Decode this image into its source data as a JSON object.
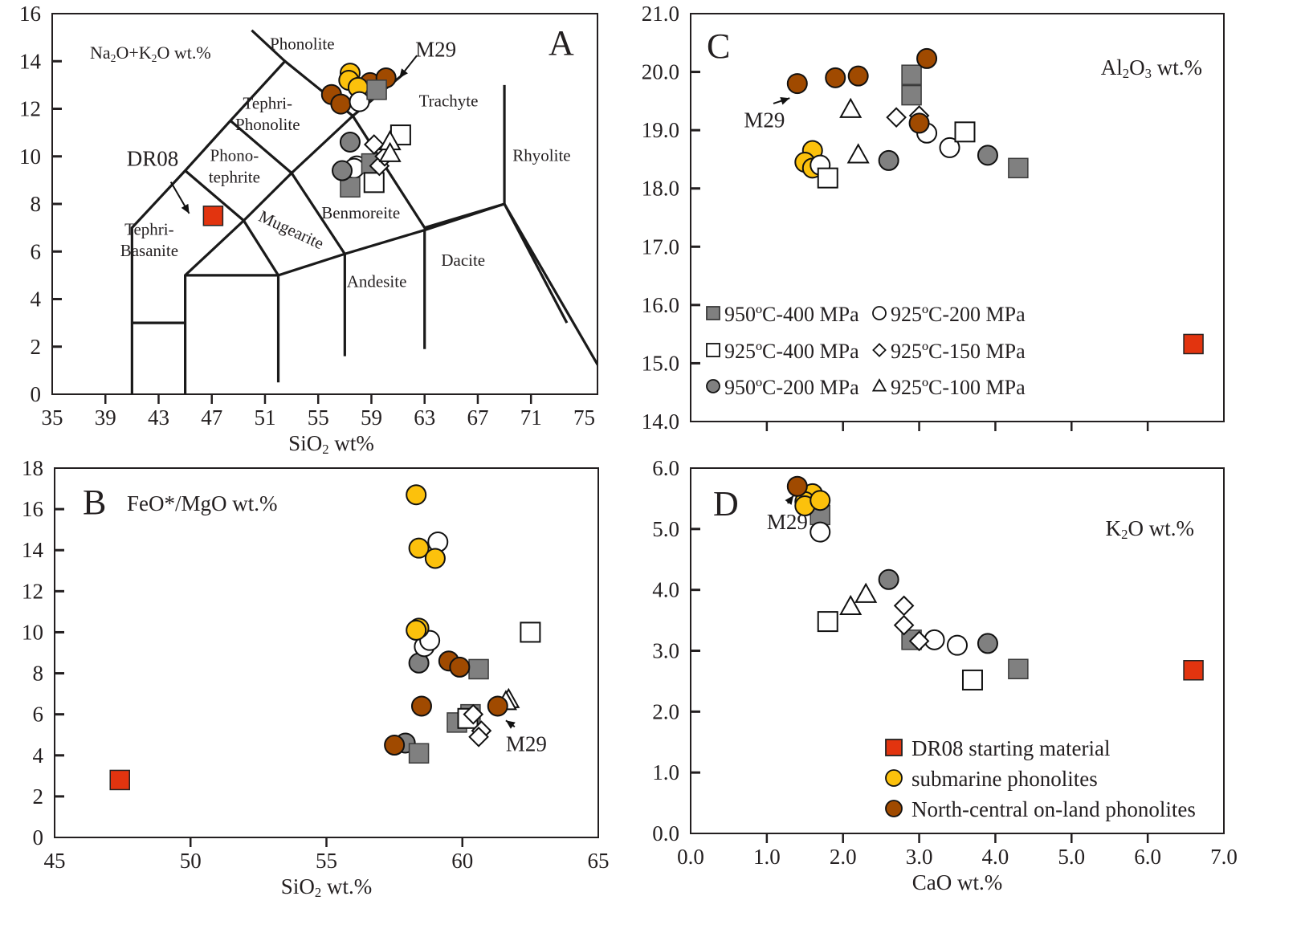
{
  "figure": {
    "colors": {
      "gray_fill": "#808080",
      "white_fill": "#ffffff",
      "dr08_red": "#e2340f",
      "submarine_yellow": "#fcc10c",
      "onland_brown": "#a04a00",
      "onland_brown_a": "#c85b0a",
      "axis": "#231f20"
    },
    "series_legend": [
      {
        "key": "g400",
        "label": "950ºC-400 MPa",
        "marker": "square",
        "fill": "gray"
      },
      {
        "key": "w200",
        "label": "925ºC-200 MPa",
        "marker": "circle",
        "fill": "white"
      },
      {
        "key": "w400",
        "label": "925ºC-400 MPa",
        "marker": "square",
        "fill": "white"
      },
      {
        "key": "d150",
        "label": "925ºC-150 MPa",
        "marker": "diamond",
        "fill": "white"
      },
      {
        "key": "g200",
        "label": "950ºC-200 MPa",
        "marker": "circle",
        "fill": "gray"
      },
      {
        "key": "t100",
        "label": "925ºC-100 MPa",
        "marker": "triangle",
        "fill": "white"
      }
    ],
    "sample_legend": [
      {
        "key": "dr08",
        "label": "DR08 starting material",
        "marker": "square",
        "fill": "red"
      },
      {
        "key": "sub",
        "label": "submarine phonolites",
        "marker": "circle",
        "fill": "yellow"
      },
      {
        "key": "onland",
        "label": "North-central on-land phonolites",
        "marker": "circle",
        "fill": "brown"
      }
    ]
  },
  "chart_data": [
    {
      "id": "A",
      "type": "scatter",
      "panel_letter": "A",
      "title": "",
      "ylabel_inside": "Na2O+K2O wt.%",
      "xlabel": "SiO2 wt%",
      "xlim": [
        35,
        76
      ],
      "ylim": [
        0,
        16
      ],
      "xticks": [
        35,
        39,
        43,
        47,
        51,
        55,
        59,
        63,
        67,
        71,
        75
      ],
      "yticks": [
        0,
        2,
        4,
        6,
        8,
        10,
        12,
        14,
        16
      ],
      "grid": false,
      "field_labels": [
        {
          "text": "Phonolite",
          "x": 53.8,
          "y": 14.5
        },
        {
          "text": "Tephri-",
          "x": 51.2,
          "y": 12.0
        },
        {
          "text": "Phonolite",
          "x": 51.2,
          "y": 11.1
        },
        {
          "text": "Phono-",
          "x": 48.7,
          "y": 9.8
        },
        {
          "text": "tephrite",
          "x": 48.7,
          "y": 8.9
        },
        {
          "text": "Tephri-",
          "x": 42.3,
          "y": 6.7
        },
        {
          "text": "Basanite",
          "x": 42.3,
          "y": 5.8
        },
        {
          "text": "Mugearite",
          "x": 52.8,
          "y": 6.7,
          "rotate": 25
        },
        {
          "text": "Benmoreite",
          "x": 58.2,
          "y": 7.4
        },
        {
          "text": "Trachyte",
          "x": 64.8,
          "y": 12.1
        },
        {
          "text": "Rhyolite",
          "x": 71.8,
          "y": 9.8
        },
        {
          "text": "Dacite",
          "x": 65.9,
          "y": 5.4
        },
        {
          "text": "Andesite",
          "x": 59.4,
          "y": 4.5
        }
      ],
      "field_boundaries": [
        [
          [
            41,
            0
          ],
          [
            41,
            7
          ],
          [
            45,
            9.4
          ],
          [
            48.4,
            11.5
          ],
          [
            52.5,
            14
          ],
          [
            57.6,
            11.7
          ],
          [
            63,
            7
          ],
          [
            69,
            8
          ],
          [
            69,
            13
          ]
        ],
        [
          [
            41,
            3
          ],
          [
            45,
            3
          ]
        ],
        [
          [
            45,
            0
          ],
          [
            45,
            5
          ],
          [
            49.4,
            7.3
          ],
          [
            53,
            9.3
          ],
          [
            57.6,
            11.7
          ]
        ],
        [
          [
            45,
            5
          ],
          [
            52,
            5
          ],
          [
            57,
            5.9
          ],
          [
            63,
            6.9
          ],
          [
            69,
            8
          ],
          [
            77.3,
            0
          ]
        ],
        [
          [
            52,
            0.5
          ],
          [
            52,
            5
          ]
        ],
        [
          [
            57,
            1.6
          ],
          [
            57,
            5.9
          ]
        ],
        [
          [
            63,
            1.9
          ],
          [
            63,
            6.9
          ]
        ],
        [
          [
            45,
            9.4
          ],
          [
            49.4,
            7.3
          ],
          [
            52,
            5
          ]
        ],
        [
          [
            48.4,
            11.5
          ],
          [
            53,
            9.3
          ],
          [
            57,
            5.9
          ]
        ],
        [
          [
            52.5,
            14
          ],
          [
            50,
            15.3
          ]
        ],
        [
          [
            57.6,
            11.7
          ],
          [
            61.5,
            13.5
          ]
        ],
        [
          [
            69,
            8
          ],
          [
            73.7,
            3
          ]
        ]
      ],
      "annotations": [
        {
          "text": "DR08",
          "x": 40.6,
          "y": 9.6,
          "arrow_to": [
            45.3,
            7.6
          ]
        },
        {
          "text": "M29",
          "x": 62.3,
          "y": 14.2,
          "arrow_to": [
            61.1,
            13.3
          ]
        }
      ],
      "series": [
        {
          "key": "onland",
          "points": [
            [
              56.0,
              12.6
            ],
            [
              56.7,
              12.2
            ],
            [
              58.9,
              13.1
            ],
            [
              60.1,
              13.3
            ]
          ]
        },
        {
          "key": "sub",
          "points": [
            [
              57.4,
              13.5
            ],
            [
              57.3,
              13.2
            ],
            [
              58.0,
              12.9
            ]
          ]
        },
        {
          "key": "w200",
          "points": [
            [
              58.1,
              12.3
            ],
            [
              57.9,
              9.6
            ],
            [
              57.7,
              9.5
            ]
          ]
        },
        {
          "key": "g400",
          "points": [
            [
              59.4,
              12.8
            ],
            [
              57.4,
              8.7
            ],
            [
              59.0,
              9.7
            ]
          ]
        },
        {
          "key": "g200",
          "points": [
            [
              57.4,
              10.6
            ],
            [
              56.8,
              9.4
            ]
          ]
        },
        {
          "key": "w400",
          "points": [
            [
              61.2,
              10.9
            ],
            [
              59.2,
              8.9
            ]
          ]
        },
        {
          "key": "d150",
          "points": [
            [
              59.2,
              10.5
            ],
            [
              59.6,
              9.6
            ],
            [
              60.0,
              10.0
            ]
          ]
        },
        {
          "key": "t100",
          "points": [
            [
              60.4,
              10.6
            ],
            [
              60.4,
              10.1
            ]
          ]
        },
        {
          "key": "dr08",
          "points": [
            [
              47.1,
              7.5
            ]
          ]
        }
      ]
    },
    {
      "id": "B",
      "type": "scatter",
      "panel_letter": "B",
      "ylabel_inside": "FeO*/MgO wt.%",
      "xlabel": "SiO2 wt.%",
      "xlim": [
        45,
        65
      ],
      "ylim": [
        0,
        18
      ],
      "xticks": [
        45,
        50,
        55,
        60,
        65
      ],
      "yticks": [
        0,
        2,
        4,
        6,
        8,
        10,
        12,
        14,
        16,
        18
      ],
      "grid": false,
      "annotations": [
        {
          "text": "M29",
          "x": 61.6,
          "y": 4.2,
          "arrow_to": [
            61.6,
            5.7
          ]
        }
      ],
      "series": [
        {
          "key": "dr08",
          "points": [
            [
              47.4,
              2.8
            ]
          ]
        },
        {
          "key": "sub",
          "points": [
            [
              58.3,
              16.7
            ],
            [
              58.4,
              14.1
            ],
            [
              59.0,
              13.6
            ],
            [
              58.4,
              10.2
            ],
            [
              58.3,
              10.1
            ]
          ]
        },
        {
          "key": "w200",
          "points": [
            [
              59.1,
              14.4
            ],
            [
              58.6,
              9.3
            ],
            [
              58.8,
              9.6
            ]
          ]
        },
        {
          "key": "g200",
          "points": [
            [
              58.4,
              8.5
            ],
            [
              57.9,
              4.6
            ]
          ]
        },
        {
          "key": "onland",
          "points": [
            [
              59.5,
              8.6
            ],
            [
              59.9,
              8.3
            ],
            [
              58.5,
              6.4
            ],
            [
              61.3,
              6.4
            ],
            [
              57.5,
              4.5
            ]
          ]
        },
        {
          "key": "g400",
          "points": [
            [
              60.6,
              8.2
            ],
            [
              59.8,
              5.6
            ],
            [
              60.3,
              6.0
            ],
            [
              58.4,
              4.1
            ]
          ]
        },
        {
          "key": "w400",
          "points": [
            [
              62.5,
              10.0
            ],
            [
              60.2,
              5.8
            ]
          ]
        },
        {
          "key": "d150",
          "points": [
            [
              60.4,
              6.0
            ],
            [
              60.7,
              5.2
            ],
            [
              60.6,
              4.9
            ]
          ]
        },
        {
          "key": "t100",
          "points": [
            [
              61.7,
              6.7
            ],
            [
              61.6,
              6.6
            ]
          ]
        }
      ]
    },
    {
      "id": "C",
      "type": "scatter",
      "panel_letter": "C",
      "ylabel_inside": "Al2O3 wt.%",
      "xlabel": "",
      "xlim": [
        0,
        7
      ],
      "ylim": [
        14,
        21
      ],
      "xticks": [
        0,
        1,
        2,
        3,
        4,
        5,
        6,
        7
      ],
      "xticklabels_shown": false,
      "yticks": [
        14.0,
        15.0,
        16.0,
        17.0,
        18.0,
        19.0,
        20.0,
        21.0
      ],
      "grid": false,
      "annotations": [
        {
          "text": "M29",
          "x": 0.7,
          "y": 19.05,
          "arrow_to": [
            1.3,
            19.55
          ]
        }
      ],
      "series": [
        {
          "key": "onland",
          "points": [
            [
              1.4,
              19.8
            ],
            [
              1.9,
              19.9
            ],
            [
              2.2,
              19.93
            ],
            [
              3.1,
              20.23
            ],
            [
              3.0,
              19.12
            ]
          ]
        },
        {
          "key": "sub",
          "points": [
            [
              1.6,
              18.65
            ],
            [
              1.5,
              18.45
            ],
            [
              1.6,
              18.35
            ]
          ]
        },
        {
          "key": "w200",
          "points": [
            [
              1.7,
              18.4
            ],
            [
              3.1,
              18.95
            ],
            [
              3.4,
              18.7
            ]
          ]
        },
        {
          "key": "w400",
          "points": [
            [
              1.8,
              18.18
            ],
            [
              3.6,
              18.97
            ]
          ]
        },
        {
          "key": "t100",
          "points": [
            [
              2.1,
              19.35
            ],
            [
              2.2,
              18.57
            ]
          ]
        },
        {
          "key": "g200",
          "points": [
            [
              2.6,
              18.48
            ],
            [
              3.9,
              18.57
            ]
          ]
        },
        {
          "key": "g400",
          "points": [
            [
              2.9,
              19.95
            ],
            [
              2.9,
              19.6
            ],
            [
              4.3,
              18.35
            ]
          ]
        },
        {
          "key": "d150",
          "points": [
            [
              2.7,
              19.22
            ],
            [
              3.0,
              19.25
            ]
          ]
        },
        {
          "key": "dr08",
          "points": [
            [
              6.6,
              15.33
            ]
          ]
        }
      ]
    },
    {
      "id": "D",
      "type": "scatter",
      "panel_letter": "D",
      "ylabel_inside": "K2O wt.%",
      "xlabel": "CaO wt.%",
      "xlim": [
        0,
        7
      ],
      "ylim": [
        0,
        6
      ],
      "xticks": [
        0.0,
        1.0,
        2.0,
        3.0,
        4.0,
        5.0,
        6.0,
        7.0
      ],
      "yticks": [
        0.0,
        1.0,
        2.0,
        3.0,
        4.0,
        5.0,
        6.0
      ],
      "grid": false,
      "annotations": [
        {
          "text": "M29",
          "x": 1.0,
          "y": 5.0,
          "arrow_to": [
            1.35,
            5.55
          ]
        }
      ],
      "series": [
        {
          "key": "onland",
          "points": [
            [
              1.4,
              5.7
            ]
          ]
        },
        {
          "key": "sub",
          "points": [
            [
              1.6,
              5.58
            ],
            [
              1.5,
              5.45
            ],
            [
              1.5,
              5.38
            ],
            [
              1.7,
              5.47
            ]
          ]
        },
        {
          "key": "g400",
          "points": [
            [
              1.7,
              5.23
            ],
            [
              2.9,
              3.18
            ],
            [
              4.3,
              2.7
            ]
          ]
        },
        {
          "key": "w200",
          "points": [
            [
              1.7,
              4.95
            ],
            [
              3.2,
              3.18
            ],
            [
              3.5,
              3.09
            ]
          ]
        },
        {
          "key": "w400",
          "points": [
            [
              1.8,
              3.48
            ],
            [
              3.7,
              2.52
            ]
          ]
        },
        {
          "key": "t100",
          "points": [
            [
              2.1,
              3.72
            ],
            [
              2.3,
              3.92
            ]
          ]
        },
        {
          "key": "g200",
          "points": [
            [
              2.6,
              4.17
            ],
            [
              3.9,
              3.12
            ]
          ]
        },
        {
          "key": "d150",
          "points": [
            [
              2.8,
              3.74
            ],
            [
              2.8,
              3.42
            ],
            [
              3.0,
              3.16
            ]
          ]
        },
        {
          "key": "dr08",
          "points": [
            [
              6.6,
              2.68
            ]
          ]
        }
      ]
    }
  ]
}
